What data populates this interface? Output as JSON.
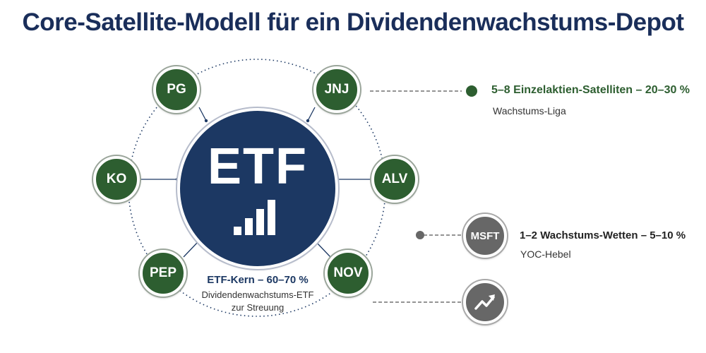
{
  "title": "Core-Satellite-Modell für ein Dividendenwachstums-Depot",
  "core": {
    "label": "ETF",
    "caption_title": "ETF-Kern – 60–70 %",
    "caption_line1": "Dividendenwachstums-ETF",
    "caption_line2": "zur Streuung",
    "color": "#1c3863",
    "icon": "bar-chart-icon"
  },
  "satellites": [
    {
      "label": "PG"
    },
    {
      "label": "JNJ"
    },
    {
      "label": "KO"
    },
    {
      "label": "ALV"
    },
    {
      "label": "PEP"
    },
    {
      "label": "NOV"
    }
  ],
  "satellite_color": "#2d5e30",
  "legend": {
    "satellites": {
      "title": "5–8 Einzelaktien-Satelliten – 20–30 %",
      "subtitle": "Wachstums-Liga",
      "color": "#2d5e30"
    },
    "bets": {
      "node_label": "MSFT",
      "title": "1–2 Wachstums-Wetten – 5–10 %",
      "subtitle": "YOC-Hebel",
      "color": "#676767"
    },
    "trend_icon": "trending-up-arrow-icon"
  }
}
